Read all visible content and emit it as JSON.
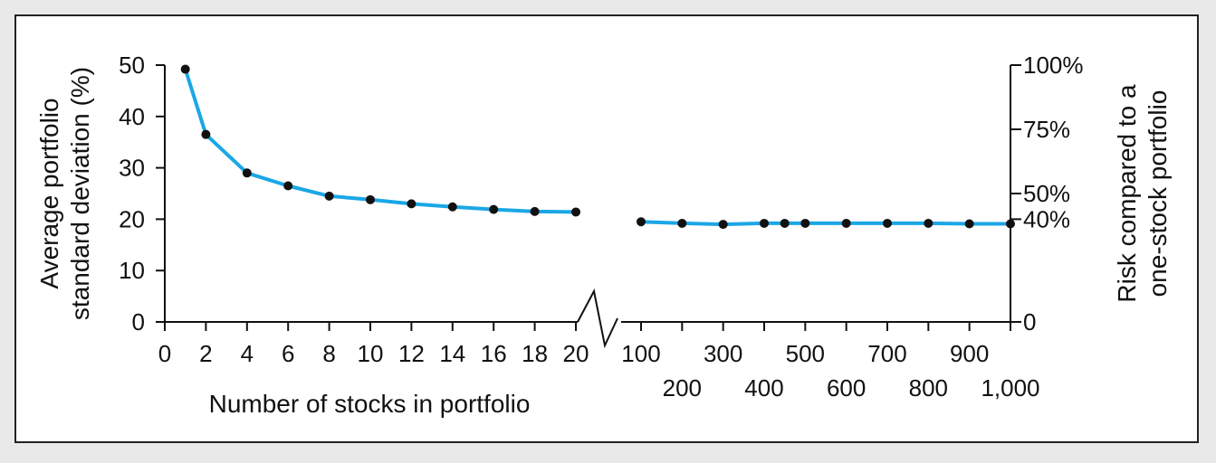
{
  "chart_data": {
    "type": "line",
    "title": "",
    "xlabel": "Number of stocks in portfolio",
    "ylabel": "Average portfolio standard deviation (%)",
    "ylabel_lines": [
      "Average portfolio",
      "standard deviation (%)"
    ],
    "y2label": "Risk compared to a one-stock portfolio",
    "y2label_lines": [
      "Risk compared to a",
      "one-stock portfolio"
    ],
    "ylim": [
      0,
      50
    ],
    "y_ticks": [
      "0",
      "10",
      "20",
      "30",
      "40",
      "50"
    ],
    "y2_ticks": [
      {
        "label": "100%",
        "value": 50
      },
      {
        "label": "75%",
        "value": 37.5
      },
      {
        "label": "50%",
        "value": 25
      },
      {
        "label": "40%",
        "value": 20
      },
      {
        "label": "0",
        "value": 0
      }
    ],
    "x_ticks_left": [
      "0",
      "2",
      "4",
      "6",
      "8",
      "10",
      "12",
      "14",
      "16",
      "18",
      "20"
    ],
    "x_ticks_right_upper": [
      "100",
      "300",
      "500",
      "700",
      "900"
    ],
    "x_ticks_right_lower": [
      "200",
      "400",
      "600",
      "800",
      "1,000"
    ],
    "axis_break_between": [
      20,
      100
    ],
    "line_color": "#1aa7e6",
    "marker_color": "#111111",
    "series_left": {
      "x": [
        1,
        2,
        4,
        6,
        8,
        10,
        12,
        14,
        16,
        18,
        20
      ],
      "y": [
        49.2,
        36.5,
        29.0,
        26.5,
        24.5,
        23.8,
        23.0,
        22.4,
        21.9,
        21.5,
        21.4
      ]
    },
    "series_right": {
      "x": [
        100,
        200,
        300,
        400,
        450,
        500,
        600,
        700,
        800,
        900,
        1000
      ],
      "y": [
        19.5,
        19.2,
        19.0,
        19.2,
        19.2,
        19.2,
        19.2,
        19.2,
        19.2,
        19.1,
        19.1
      ]
    }
  }
}
